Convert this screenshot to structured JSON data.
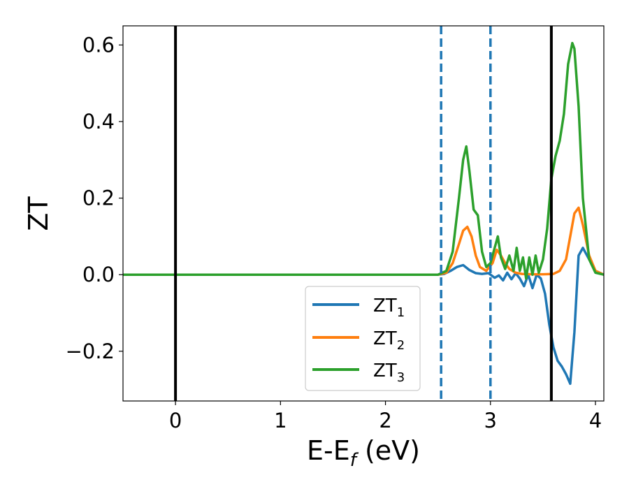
{
  "chart_data": {
    "type": "line",
    "xlabel_main": "E-E",
    "xlabel_sub": "f",
    "xlabel_unit": " (eV)",
    "ylabel": "ZT",
    "xlim": [
      -0.5,
      4.08
    ],
    "ylim": [
      -0.33,
      0.65
    ],
    "x_ticks": [
      0,
      1,
      2,
      3,
      4
    ],
    "x_tick_labels": [
      "0",
      "1",
      "2",
      "3",
      "4"
    ],
    "y_ticks": [
      -0.2,
      0.0,
      0.2,
      0.4,
      0.6
    ],
    "y_tick_labels": [
      "−0.2",
      "0.0",
      "0.2",
      "0.4",
      "0.6"
    ],
    "grid": false,
    "legend_position": "lower-center",
    "vlines": [
      {
        "x": 0.0,
        "style": "solid",
        "color": "#000000"
      },
      {
        "x": 2.53,
        "style": "dashed",
        "color": "#1f77b4"
      },
      {
        "x": 3.0,
        "style": "dashed",
        "color": "#1f77b4"
      },
      {
        "x": 3.58,
        "style": "solid",
        "color": "#000000"
      }
    ],
    "series": [
      {
        "name_main": "ZT",
        "name_sub": "1",
        "color": "#1f77b4",
        "x": [
          -0.5,
          2.5,
          2.56,
          2.62,
          2.68,
          2.74,
          2.8,
          2.86,
          2.92,
          2.98,
          3.04,
          3.08,
          3.12,
          3.16,
          3.2,
          3.24,
          3.28,
          3.32,
          3.36,
          3.4,
          3.44,
          3.48,
          3.52,
          3.56,
          3.6,
          3.64,
          3.68,
          3.72,
          3.76,
          3.8,
          3.84,
          3.88,
          3.94,
          4.0,
          4.08
        ],
        "y": [
          0.0,
          0.0,
          0.002,
          0.01,
          0.02,
          0.025,
          0.012,
          0.004,
          0.002,
          0.004,
          -0.008,
          -0.002,
          -0.015,
          0.005,
          -0.012,
          0.004,
          -0.01,
          -0.03,
          0.0,
          -0.035,
          0.0,
          -0.01,
          -0.05,
          -0.13,
          -0.19,
          -0.225,
          -0.24,
          -0.26,
          -0.285,
          -0.15,
          0.05,
          0.07,
          0.04,
          0.01,
          0.0
        ]
      },
      {
        "name_main": "ZT",
        "name_sub": "2",
        "color": "#ff7f0e",
        "x": [
          -0.5,
          2.5,
          2.58,
          2.64,
          2.7,
          2.74,
          2.78,
          2.82,
          2.86,
          2.9,
          2.96,
          3.02,
          3.06,
          3.1,
          3.14,
          3.18,
          3.24,
          3.3,
          3.4,
          3.5,
          3.6,
          3.66,
          3.72,
          3.76,
          3.8,
          3.84,
          3.88,
          3.94,
          4.0,
          4.08
        ],
        "y": [
          0.0,
          0.0,
          0.005,
          0.03,
          0.08,
          0.115,
          0.125,
          0.1,
          0.05,
          0.02,
          0.01,
          0.03,
          0.065,
          0.05,
          0.03,
          0.015,
          0.005,
          0.002,
          0.001,
          0.001,
          0.002,
          0.01,
          0.04,
          0.1,
          0.16,
          0.175,
          0.13,
          0.05,
          0.01,
          0.0
        ]
      },
      {
        "name_main": "ZT",
        "name_sub": "3",
        "color": "#2ca02c",
        "x": [
          -0.5,
          2.5,
          2.58,
          2.64,
          2.7,
          2.74,
          2.77,
          2.8,
          2.84,
          2.88,
          2.92,
          2.96,
          3.0,
          3.04,
          3.07,
          3.1,
          3.14,
          3.18,
          3.22,
          3.25,
          3.28,
          3.31,
          3.34,
          3.37,
          3.4,
          3.43,
          3.46,
          3.5,
          3.54,
          3.58,
          3.62,
          3.66,
          3.7,
          3.74,
          3.78,
          3.8,
          3.84,
          3.88,
          3.94,
          4.0,
          4.08
        ],
        "y": [
          0.0,
          0.0,
          0.01,
          0.06,
          0.2,
          0.3,
          0.335,
          0.27,
          0.17,
          0.155,
          0.06,
          0.02,
          0.03,
          0.07,
          0.1,
          0.045,
          0.015,
          0.05,
          0.01,
          0.07,
          0.01,
          0.045,
          -0.01,
          0.045,
          0.0,
          0.05,
          0.005,
          0.04,
          0.12,
          0.25,
          0.31,
          0.35,
          0.42,
          0.55,
          0.605,
          0.59,
          0.44,
          0.2,
          0.04,
          0.005,
          0.0
        ]
      }
    ]
  }
}
